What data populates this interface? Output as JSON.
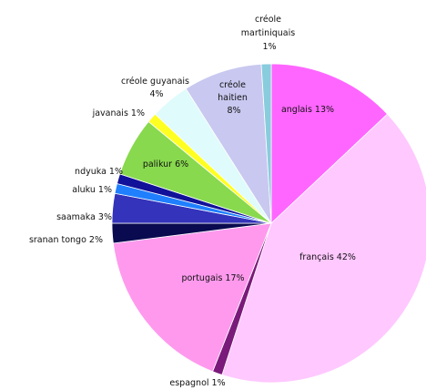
{
  "chart_data": {
    "type": "pie",
    "title": "",
    "start_angle_deg": 0,
    "direction": "clockwise",
    "slices": [
      {
        "label": "anglais 13%",
        "value": 13,
        "color": "#ff66ff"
      },
      {
        "label": "français 42%",
        "value": 42,
        "color": "#ffc8ff"
      },
      {
        "label": "espagnol 1%",
        "value": 1,
        "color": "#7a1a7a"
      },
      {
        "label": "portugais 17%",
        "value": 17,
        "color": "#ff99ee"
      },
      {
        "label": "sranan tongo 2%",
        "value": 2,
        "color": "#0a0a50"
      },
      {
        "label": "saamaka 3%",
        "value": 3,
        "color": "#3333bb"
      },
      {
        "label": "aluku 1%",
        "value": 1,
        "color": "#1f7fff"
      },
      {
        "label": "ndyuka 1%",
        "value": 1,
        "color": "#111199"
      },
      {
        "label": "palikur 6%",
        "value": 6,
        "color": "#88d94e"
      },
      {
        "label": "javanais 1%",
        "value": 1,
        "color": "#ffff22"
      },
      {
        "label": "créole guyanais 4%",
        "value": 4,
        "color": "#dffbfb"
      },
      {
        "label": "créole haitien 8%",
        "value": 8,
        "color": "#c8c8f0"
      },
      {
        "label": "créole martiniquais 1%",
        "value": 1,
        "color": "#88ccdd"
      }
    ]
  }
}
